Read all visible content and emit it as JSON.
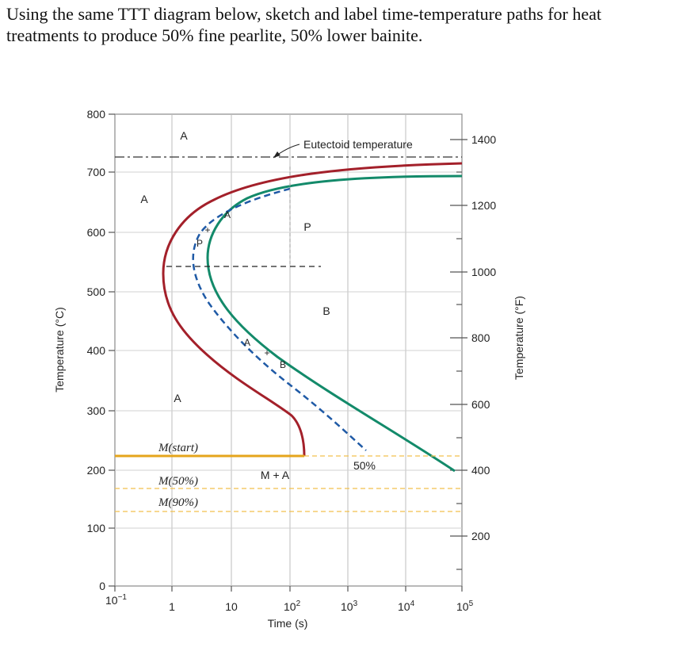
{
  "question": "Using the same TTT diagram below, sketch and label time-temperature paths for heat treatments to produce 50% fine pearlite, 50% lower bainite.",
  "diagram": {
    "eutectoid_label": "Eutectoid temperature",
    "left_axis_title": "Temperature (°C)",
    "right_axis_title": "Temperature (°F)",
    "x_axis_title": "Time (s)",
    "left_ticks": [
      "800",
      "700",
      "600",
      "500",
      "400",
      "300",
      "200",
      "100",
      "0"
    ],
    "right_ticks": [
      "1400",
      "1200",
      "1000",
      "800",
      "600",
      "400",
      "200"
    ],
    "x_ticks": {
      "t0_base": "10",
      "t0_exp": "−1",
      "t1": "1",
      "t2": "10",
      "t3_base": "10",
      "t3_exp": "2",
      "t4_base": "10",
      "t4_exp": "3",
      "t5_base": "10",
      "t5_exp": "4",
      "t6_base": "10",
      "t6_exp": "5"
    },
    "regions": {
      "a_top": "A",
      "a_left": "A",
      "a_lower": "A",
      "p_main": "P",
      "b_main": "B",
      "mplusa": "M + A",
      "fifty": "50%",
      "path_a_upper": "A",
      "path_p": "P",
      "path_a_mid": "A",
      "path_b": "B"
    },
    "m_labels": {
      "start": "M(start)",
      "m50": "M(50%)",
      "m90": "M(90%)"
    },
    "colors": {
      "start_curve": "#a3202a",
      "finish_curve": "#138a6a",
      "fifty_curve": "#1f5aa6",
      "martensite_start": "#e5a51c",
      "martensite_dash": "#f2c14e"
    }
  }
}
